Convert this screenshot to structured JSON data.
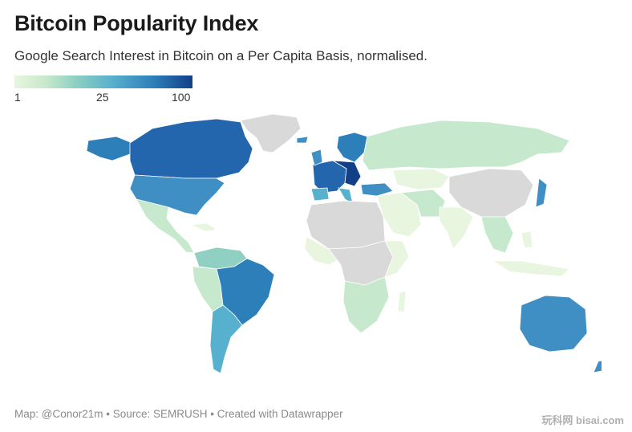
{
  "title": "Bitcoin Popularity Index",
  "subtitle": "Google Search Interest in Bitcoin on a Per Capita Basis, normalised.",
  "legend": {
    "min_label": "1",
    "mid_label": "25",
    "max_label": "100"
  },
  "footer": "Map: @Conor21m • Source: SEMRUSH • Created with Datawrapper",
  "watermark": "玩科网 bisai.com",
  "colors": {
    "no_data": "#d9d9d9",
    "lowest": "#e8f5df",
    "low": "#c6e8cc",
    "mid_low": "#8fd0c2",
    "mid": "#57b0cd",
    "high": "#2d7fba",
    "highest": "#133f88"
  }
}
